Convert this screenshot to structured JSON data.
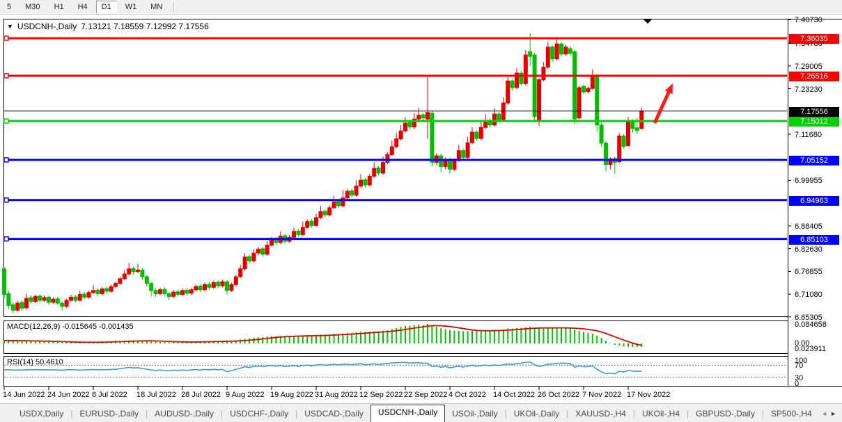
{
  "toolbar": {
    "timeframes": [
      "5",
      "M30",
      "H1",
      "H4",
      "D1",
      "W1",
      "MN"
    ],
    "active_timeframe": "D1"
  },
  "header": {
    "symbol": "USDCNH-,Daily",
    "ohlc": "7.13121 7.18559 7.12992 7.17556"
  },
  "indicators": {
    "macd_label": "MACD(12,26,9) -0.015645 -0.001435",
    "rsi_label": "RSI(14) 50.4610"
  },
  "tabs": {
    "items": [
      "USDX,Daily",
      "EURUSD-,Daily",
      "AUDUSD-,Daily",
      "USDCHF-,Daily",
      "USDCAD-,Daily",
      "USDCNH-,Daily",
      "USOil-,Daily",
      "UKOil-,Daily",
      "XAUUSD-,H4",
      "UKOil-,H4",
      "GBPUSD-,Daily",
      "SP500-,H4"
    ],
    "active_index": 5,
    "scroll_left": "◄",
    "scroll_right": "►"
  },
  "chart_data": {
    "type": "candlestick",
    "symbol": "USDCNH-",
    "timeframe": "Daily",
    "ohlc_current": {
      "open": 7.13121,
      "high": 7.18559,
      "low": 7.12992,
      "close": 7.17556
    },
    "ylim": [
      6.654,
      7.408
    ],
    "grid": false,
    "price_ticks": [
      7.4073,
      7.3478,
      7.29005,
      7.2323,
      7.1168,
      6.99955,
      6.88405,
      6.8263,
      6.76855,
      6.7108,
      6.65305
    ],
    "price_badges": [
      {
        "price": 7.36035,
        "color": "#ff0000"
      },
      {
        "price": 7.26516,
        "color": "#ff0000"
      },
      {
        "price": 7.17556,
        "color": "#000000"
      },
      {
        "price": 7.15012,
        "color": "#00d300"
      },
      {
        "price": 7.05152,
        "color": "#0000ff"
      },
      {
        "price": 6.94963,
        "color": "#0000ff"
      },
      {
        "price": 6.85103,
        "color": "#0000ff"
      }
    ],
    "hlines": [
      {
        "price": 7.36035,
        "color": "#ff0000",
        "width": 3,
        "handle": true
      },
      {
        "price": 7.26516,
        "color": "#ff0000",
        "width": 3,
        "handle": true
      },
      {
        "price": 7.17556,
        "color": "#000000",
        "width": 1,
        "handle": false
      },
      {
        "price": 7.15012,
        "color": "#00d300",
        "width": 3,
        "handle": true
      },
      {
        "price": 7.05152,
        "color": "#0000ff",
        "width": 3,
        "handle": true
      },
      {
        "price": 6.94963,
        "color": "#0000ff",
        "width": 3,
        "handle": true
      },
      {
        "price": 6.85103,
        "color": "#0000ff",
        "width": 3,
        "handle": true
      }
    ],
    "x_labels": [
      "14 Jun 2022",
      "24 Jun 2022",
      "6 Jul 2022",
      "18 Jul 2022",
      "28 Jul 2022",
      "9 Aug 2022",
      "19 Aug 2022",
      "31 Aug 2022",
      "12 Sep 2022",
      "22 Sep 2022",
      "4 Oct 2022",
      "14 Oct 2022",
      "26 Oct 2022",
      "7 Nov 2022",
      "17 Nov 2022"
    ],
    "x_label_step": 10,
    "candles": [
      [
        6.775,
        6.78,
        6.7,
        6.71
      ],
      [
        6.712,
        6.718,
        6.672,
        6.682
      ],
      [
        6.684,
        6.69,
        6.663,
        6.67
      ],
      [
        6.67,
        6.694,
        6.666,
        6.688
      ],
      [
        6.69,
        6.695,
        6.668,
        6.675
      ],
      [
        6.676,
        6.712,
        6.672,
        6.7
      ],
      [
        6.702,
        6.708,
        6.686,
        6.692
      ],
      [
        6.692,
        6.71,
        6.688,
        6.705
      ],
      [
        6.706,
        6.71,
        6.69,
        6.695
      ],
      [
        6.695,
        6.708,
        6.691,
        6.702
      ],
      [
        6.703,
        6.707,
        6.684,
        6.69
      ],
      [
        6.69,
        6.703,
        6.686,
        6.698
      ],
      [
        6.699,
        6.704,
        6.683,
        6.688
      ],
      [
        6.688,
        6.692,
        6.67,
        6.68
      ],
      [
        6.68,
        6.699,
        6.676,
        6.695
      ],
      [
        6.695,
        6.709,
        6.691,
        6.703
      ],
      [
        6.704,
        6.708,
        6.69,
        6.695
      ],
      [
        6.695,
        6.72,
        6.691,
        6.71
      ],
      [
        6.711,
        6.716,
        6.698,
        6.703
      ],
      [
        6.703,
        6.72,
        6.699,
        6.715
      ],
      [
        6.715,
        6.733,
        6.711,
        6.72
      ],
      [
        6.721,
        6.726,
        6.706,
        6.712
      ],
      [
        6.712,
        6.729,
        6.708,
        6.724
      ],
      [
        6.725,
        6.73,
        6.712,
        6.718
      ],
      [
        6.718,
        6.735,
        6.714,
        6.73
      ],
      [
        6.73,
        6.743,
        6.726,
        6.738
      ],
      [
        6.738,
        6.755,
        6.734,
        6.75
      ],
      [
        6.75,
        6.772,
        6.746,
        6.762
      ],
      [
        6.762,
        6.79,
        6.758,
        6.775
      ],
      [
        6.776,
        6.781,
        6.76,
        6.768
      ],
      [
        6.768,
        6.788,
        6.764,
        6.772
      ],
      [
        6.772,
        6.777,
        6.748,
        6.755
      ],
      [
        6.755,
        6.76,
        6.73,
        6.738
      ],
      [
        6.738,
        6.742,
        6.705,
        6.72
      ],
      [
        6.72,
        6.725,
        6.704,
        6.712
      ],
      [
        6.712,
        6.727,
        6.708,
        6.722
      ],
      [
        6.723,
        6.728,
        6.706,
        6.712
      ],
      [
        6.712,
        6.717,
        6.695,
        6.705
      ],
      [
        6.705,
        6.721,
        6.701,
        6.716
      ],
      [
        6.717,
        6.722,
        6.704,
        6.71
      ],
      [
        6.71,
        6.725,
        6.706,
        6.72
      ],
      [
        6.721,
        6.726,
        6.707,
        6.713
      ],
      [
        6.713,
        6.727,
        6.709,
        6.722
      ],
      [
        6.722,
        6.735,
        6.718,
        6.73
      ],
      [
        6.731,
        6.736,
        6.716,
        6.722
      ],
      [
        6.722,
        6.74,
        6.718,
        6.735
      ],
      [
        6.736,
        6.741,
        6.722,
        6.728
      ],
      [
        6.728,
        6.745,
        6.724,
        6.74
      ],
      [
        6.741,
        6.746,
        6.726,
        6.732
      ],
      [
        6.732,
        6.747,
        6.728,
        6.742
      ],
      [
        6.742,
        6.746,
        6.71,
        6.72
      ],
      [
        6.72,
        6.74,
        6.716,
        6.735
      ],
      [
        6.735,
        6.76,
        6.731,
        6.755
      ],
      [
        6.755,
        6.785,
        6.751,
        6.775
      ],
      [
        6.775,
        6.815,
        6.771,
        6.805
      ],
      [
        6.806,
        6.811,
        6.788,
        6.795
      ],
      [
        6.795,
        6.825,
        6.791,
        6.815
      ],
      [
        6.815,
        6.831,
        6.809,
        6.825
      ],
      [
        6.826,
        6.831,
        6.806,
        6.812
      ],
      [
        6.812,
        6.845,
        6.808,
        6.835
      ],
      [
        6.835,
        6.856,
        6.831,
        6.85
      ],
      [
        6.851,
        6.856,
        6.836,
        6.842
      ],
      [
        6.842,
        6.87,
        6.838,
        6.858
      ],
      [
        6.859,
        6.864,
        6.839,
        6.845
      ],
      [
        6.845,
        6.861,
        6.841,
        6.855
      ],
      [
        6.855,
        6.88,
        6.851,
        6.87
      ],
      [
        6.871,
        6.876,
        6.856,
        6.862
      ],
      [
        6.862,
        6.895,
        6.858,
        6.88
      ],
      [
        6.88,
        6.901,
        6.876,
        6.895
      ],
      [
        6.896,
        6.901,
        6.879,
        6.885
      ],
      [
        6.885,
        6.915,
        6.881,
        6.905
      ],
      [
        6.905,
        6.935,
        6.901,
        6.92
      ],
      [
        6.921,
        6.926,
        6.906,
        6.912
      ],
      [
        6.912,
        6.936,
        6.908,
        6.93
      ],
      [
        6.93,
        6.96,
        6.926,
        6.945
      ],
      [
        6.946,
        6.951,
        6.929,
        6.935
      ],
      [
        6.935,
        6.975,
        6.931,
        6.955
      ],
      [
        6.955,
        6.978,
        6.951,
        6.972
      ],
      [
        6.973,
        6.978,
        6.956,
        6.962
      ],
      [
        6.962,
        7.0,
        6.958,
        6.985
      ],
      [
        6.985,
        7.015,
        6.981,
        7.0
      ],
      [
        7.001,
        7.006,
        6.982,
        6.988
      ],
      [
        6.988,
        7.016,
        6.984,
        7.01
      ],
      [
        7.01,
        7.045,
        7.006,
        7.03
      ],
      [
        7.031,
        7.036,
        7.012,
        7.018
      ],
      [
        7.018,
        7.06,
        7.014,
        7.045
      ],
      [
        7.045,
        7.071,
        7.041,
        7.065
      ],
      [
        7.065,
        7.1,
        7.061,
        7.085
      ],
      [
        7.085,
        7.12,
        7.081,
        7.105
      ],
      [
        7.105,
        7.14,
        7.101,
        7.125
      ],
      [
        7.125,
        7.16,
        7.121,
        7.145
      ],
      [
        7.146,
        7.151,
        7.129,
        7.135
      ],
      [
        7.135,
        7.17,
        7.131,
        7.155
      ],
      [
        7.155,
        7.185,
        7.151,
        7.165
      ],
      [
        7.166,
        7.171,
        7.15,
        7.158
      ],
      [
        7.155,
        7.265,
        7.105,
        7.172
      ],
      [
        7.17,
        7.175,
        7.035,
        7.045
      ],
      [
        7.045,
        7.068,
        7.038,
        7.062
      ],
      [
        7.062,
        7.067,
        7.02,
        7.035
      ],
      [
        7.035,
        7.058,
        7.028,
        7.052
      ],
      [
        7.052,
        7.057,
        7.016,
        7.028
      ],
      [
        7.028,
        7.055,
        7.024,
        7.05
      ],
      [
        7.05,
        7.09,
        7.046,
        7.075
      ],
      [
        7.075,
        7.08,
        7.052,
        7.058
      ],
      [
        7.058,
        7.11,
        7.054,
        7.095
      ],
      [
        7.095,
        7.135,
        7.091,
        7.122
      ],
      [
        7.122,
        7.127,
        7.1,
        7.106
      ],
      [
        7.106,
        7.15,
        7.102,
        7.134
      ],
      [
        7.134,
        7.168,
        7.13,
        7.152
      ],
      [
        7.152,
        7.157,
        7.134,
        7.14
      ],
      [
        7.14,
        7.182,
        7.136,
        7.168
      ],
      [
        7.168,
        7.173,
        7.148,
        7.154
      ],
      [
        7.154,
        7.21,
        7.15,
        7.196
      ],
      [
        7.196,
        7.262,
        7.192,
        7.252
      ],
      [
        7.252,
        7.257,
        7.228,
        7.235
      ],
      [
        7.235,
        7.285,
        7.231,
        7.272
      ],
      [
        7.272,
        7.277,
        7.24,
        7.245
      ],
      [
        7.245,
        7.33,
        7.241,
        7.318
      ],
      [
        7.326,
        7.374,
        7.29,
        7.314
      ],
      [
        7.318,
        7.323,
        7.15,
        7.162
      ],
      [
        7.15,
        7.26,
        7.138,
        7.255
      ],
      [
        7.255,
        7.3,
        7.251,
        7.287
      ],
      [
        7.287,
        7.352,
        7.283,
        7.338
      ],
      [
        7.338,
        7.343,
        7.3,
        7.308
      ],
      [
        7.308,
        7.357,
        7.304,
        7.346
      ],
      [
        7.346,
        7.351,
        7.314,
        7.32
      ],
      [
        7.32,
        7.344,
        7.316,
        7.338
      ],
      [
        7.334,
        7.34,
        7.316,
        7.322
      ],
      [
        7.326,
        7.331,
        7.142,
        7.155
      ],
      [
        7.158,
        7.24,
        7.154,
        7.235
      ],
      [
        7.238,
        7.243,
        7.218,
        7.224
      ],
      [
        7.225,
        7.238,
        7.22,
        7.233
      ],
      [
        7.233,
        7.281,
        7.229,
        7.265
      ],
      [
        7.265,
        7.27,
        7.124,
        7.14
      ],
      [
        7.14,
        7.145,
        7.084,
        7.094
      ],
      [
        7.094,
        7.099,
        7.022,
        7.04
      ],
      [
        7.04,
        7.058,
        7.028,
        7.054
      ],
      [
        7.055,
        7.06,
        7.017,
        7.045
      ],
      [
        7.047,
        7.12,
        7.043,
        7.112
      ],
      [
        7.112,
        7.117,
        7.08,
        7.086
      ],
      [
        7.088,
        7.161,
        7.084,
        7.15
      ],
      [
        7.15,
        7.155,
        7.12,
        7.131
      ],
      [
        7.133,
        7.158,
        7.117,
        7.126
      ],
      [
        7.13121,
        7.18559,
        7.12992,
        7.17556
      ]
    ],
    "macd": {
      "params": "12,26,9",
      "value_main": -0.015645,
      "value_signal": -0.001435,
      "signal_sma": 9,
      "axis_labels": [
        "0.084658",
        "0.00",
        "0.023911"
      ],
      "values": [
        0.012,
        0.013,
        0.012,
        0.011,
        0.01,
        0.011,
        0.01,
        0.009,
        0.009,
        0.008,
        0.007,
        0.006,
        0.006,
        0.005,
        0.005,
        0.004,
        0.004,
        0.005,
        0.005,
        0.006,
        0.006,
        0.007,
        0.007,
        0.008,
        0.009,
        0.01,
        0.011,
        0.012,
        0.013,
        0.013,
        0.012,
        0.011,
        0.01,
        0.008,
        0.007,
        0.006,
        0.006,
        0.005,
        0.005,
        0.006,
        0.006,
        0.007,
        0.007,
        0.008,
        0.008,
        0.009,
        0.009,
        0.01,
        0.01,
        0.011,
        0.011,
        0.012,
        0.014,
        0.017,
        0.02,
        0.022,
        0.025,
        0.027,
        0.028,
        0.03,
        0.032,
        0.032,
        0.033,
        0.033,
        0.032,
        0.033,
        0.033,
        0.034,
        0.035,
        0.035,
        0.036,
        0.038,
        0.038,
        0.039,
        0.041,
        0.041,
        0.043,
        0.045,
        0.045,
        0.048,
        0.05,
        0.05,
        0.051,
        0.053,
        0.053,
        0.055,
        0.058,
        0.062,
        0.067,
        0.072,
        0.076,
        0.077,
        0.079,
        0.081,
        0.08,
        0.0847,
        0.078,
        0.072,
        0.066,
        0.062,
        0.058,
        0.056,
        0.055,
        0.053,
        0.053,
        0.055,
        0.054,
        0.056,
        0.058,
        0.057,
        0.059,
        0.058,
        0.061,
        0.065,
        0.065,
        0.067,
        0.068,
        0.071,
        0.073,
        0.068,
        0.065,
        0.064,
        0.066,
        0.067,
        0.068,
        0.069,
        0.069,
        0.068,
        0.06,
        0.055,
        0.05,
        0.046,
        0.043,
        0.034,
        0.024,
        0.012,
        0.002,
        -0.006,
        -0.01,
        -0.013,
        -0.0145,
        -0.0155,
        -0.0158,
        -0.0156
      ]
    },
    "rsi": {
      "period": 14,
      "value": 50.461,
      "levels": [
        70,
        30
      ],
      "axis_labels": [
        "100",
        "70",
        "30",
        "0"
      ],
      "values": [
        55,
        54.5,
        53.8,
        54.5,
        54,
        55,
        54.6,
        55.2,
        54.8,
        55,
        54.4,
        54.8,
        54.2,
        53.6,
        54.6,
        55.2,
        54.6,
        53.8,
        54.2,
        55,
        55.6,
        54.8,
        55.4,
        54.9,
        55.8,
        56.5,
        58,
        60.5,
        62.5,
        61,
        61.5,
        59,
        56.5,
        54,
        52.8,
        54,
        52.9,
        52,
        53.5,
        52.8,
        54,
        53,
        54.2,
        55.5,
        54.2,
        55.8,
        54.6,
        56,
        54.8,
        56.2,
        48.5,
        52,
        56,
        60,
        65,
        62.5,
        65.5,
        67,
        64.5,
        67.5,
        69,
        66.5,
        68.5,
        65.5,
        66.5,
        68.5,
        66,
        68.5,
        70,
        67.5,
        70,
        72,
        69.5,
        71.5,
        73,
        70.5,
        72.5,
        73.5,
        71,
        73.5,
        74.5,
        71,
        72.5,
        74.5,
        71.5,
        74,
        75.5,
        77,
        78,
        78.5,
        79,
        76.5,
        77.5,
        78,
        76,
        76.5,
        65,
        67,
        63,
        65.5,
        61.5,
        64,
        66.5,
        63.5,
        67,
        69.5,
        66.5,
        68.5,
        70,
        68,
        70.5,
        69,
        71.5,
        74,
        72.5,
        75,
        76.5,
        79,
        80,
        71.5,
        65,
        69,
        72.5,
        74,
        75.5,
        76.5,
        76,
        75.5,
        63,
        67,
        64.5,
        65,
        67.5,
        56,
        48,
        42.5,
        44,
        42,
        50,
        47.5,
        53,
        50.5,
        49.5,
        50.46
      ]
    },
    "annotations": {
      "arrow_from": [
        940,
        177
      ],
      "arrow_to": [
        966,
        120
      ],
      "arrow_color": "#ff1a1a",
      "shift_marker_x": 930
    },
    "colors": {
      "up": "#e60000",
      "down": "#00bf00",
      "rsi_line": "#3d9bd9",
      "macd_hist": "#00c400",
      "macd_signal": "#e60000",
      "current_price_line": "#000000"
    }
  }
}
